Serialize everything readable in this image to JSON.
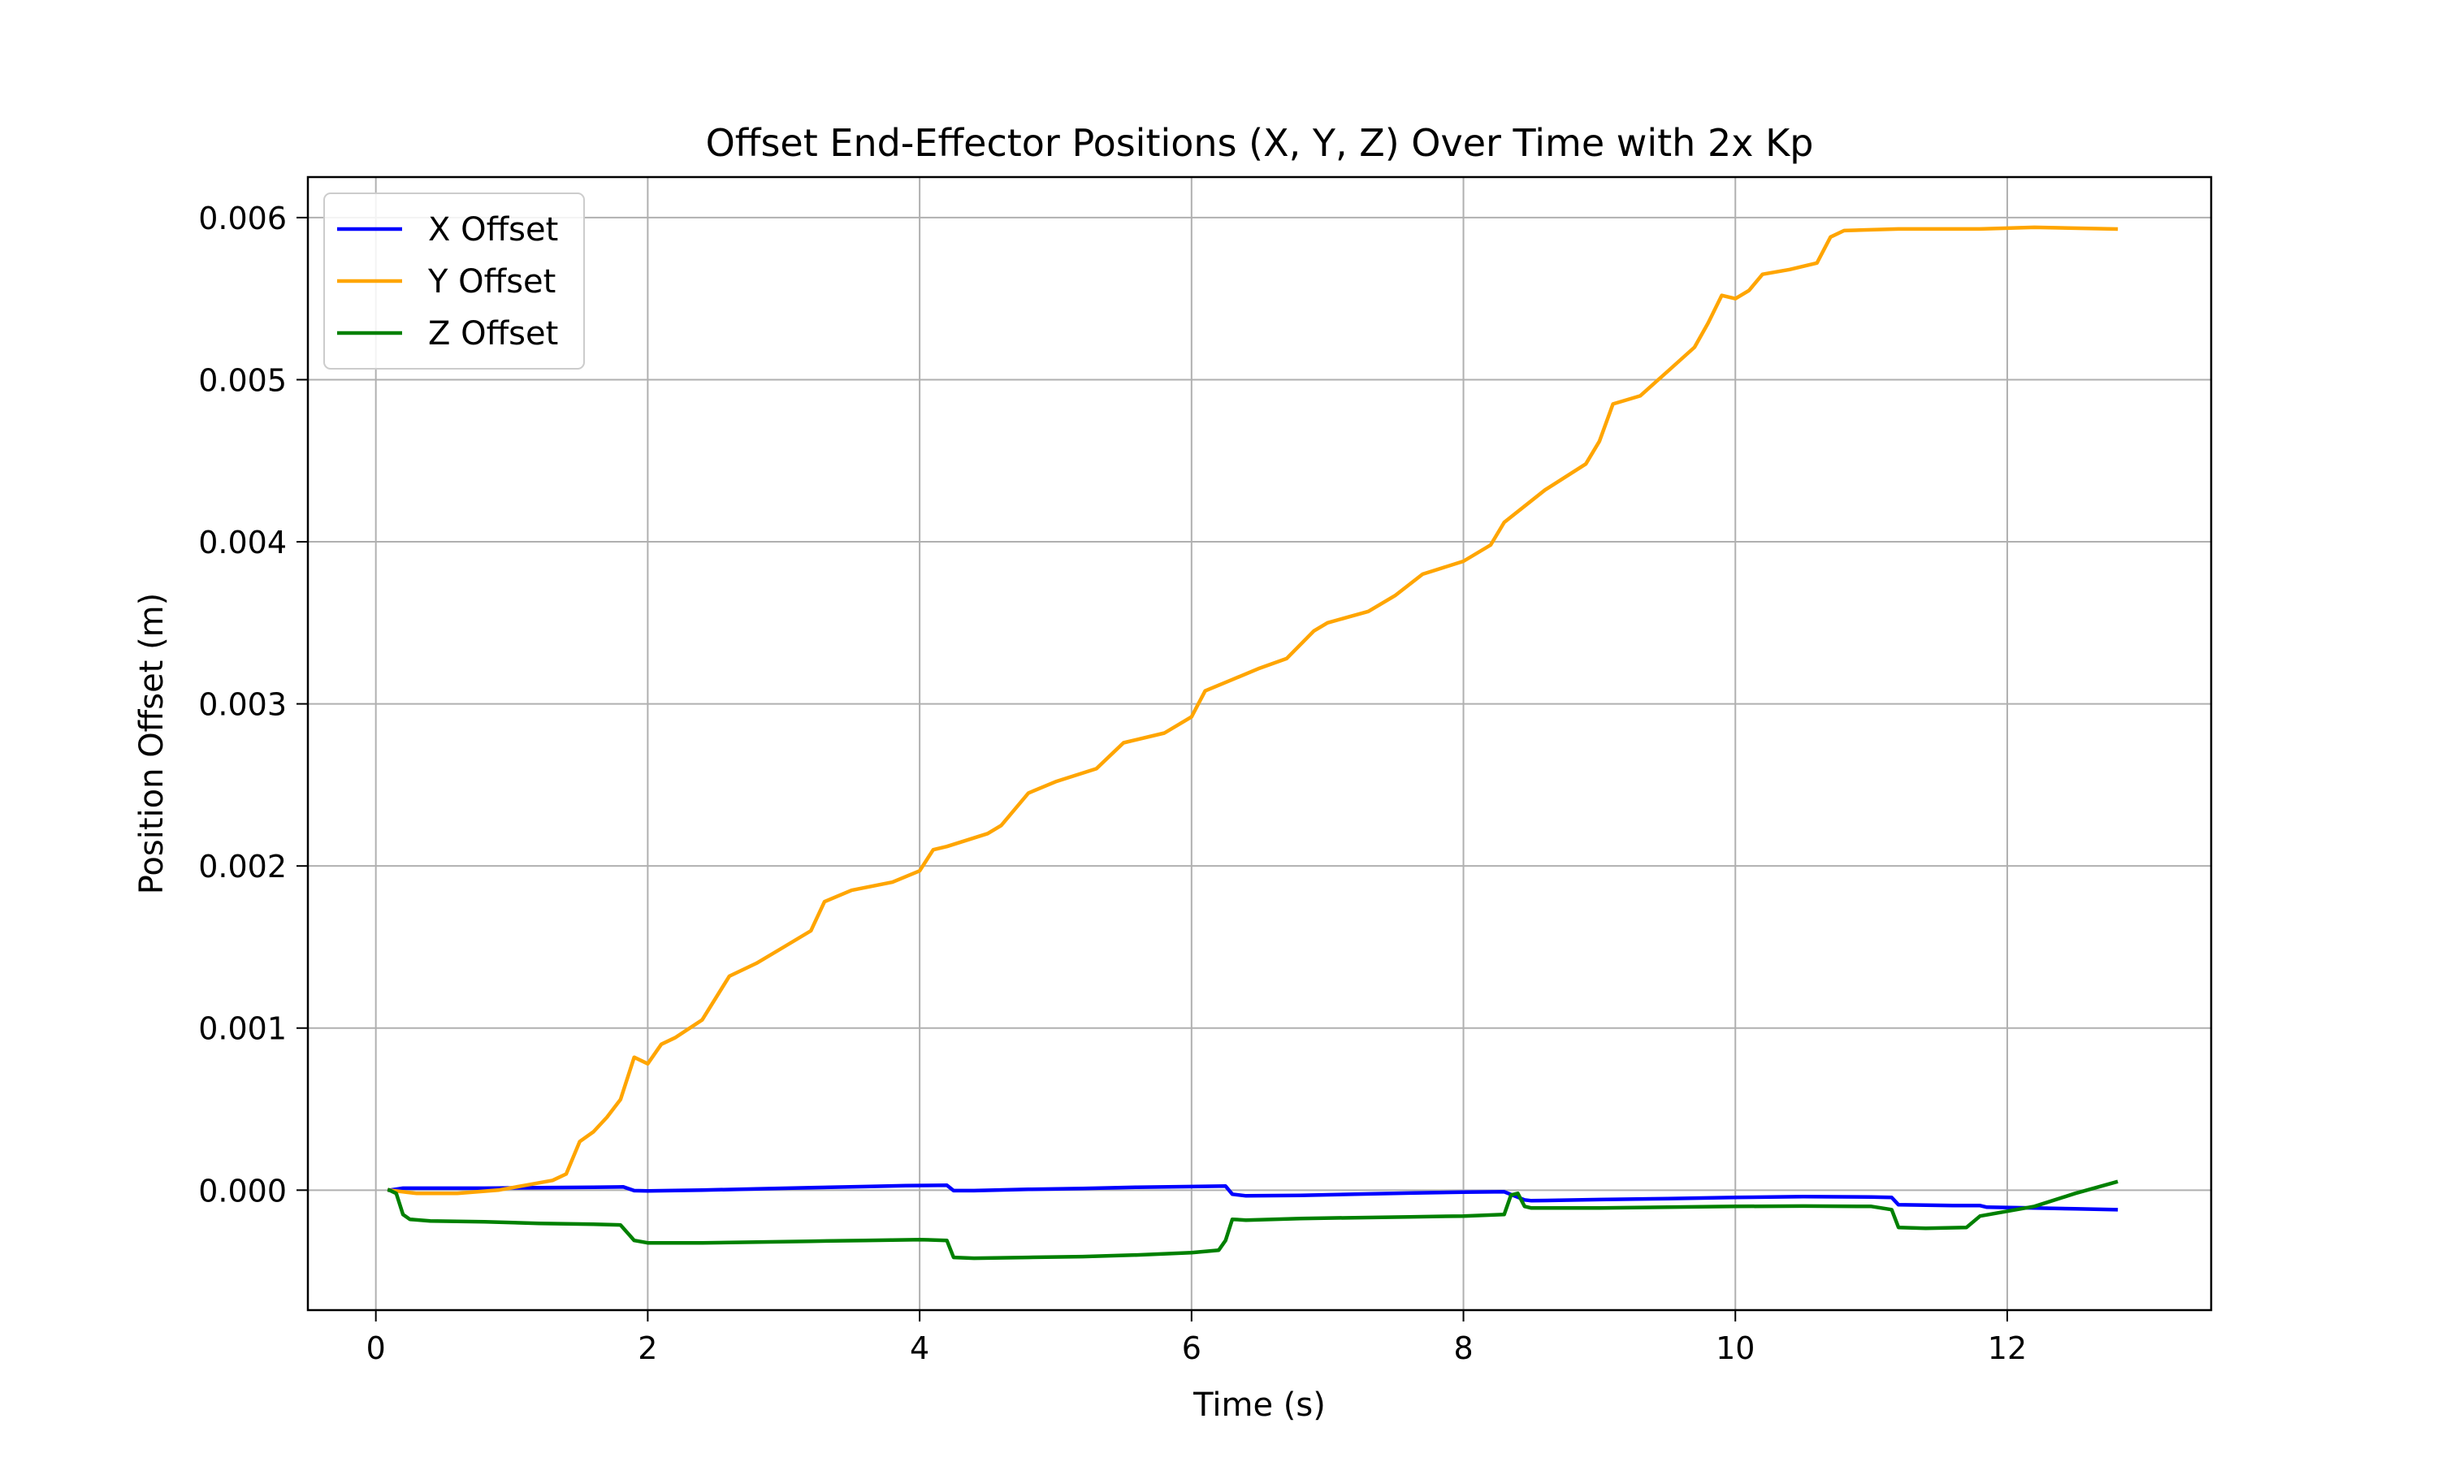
{
  "chart_data": {
    "type": "line",
    "title": "Offset End-Effector Positions (X, Y, Z) Over Time with 2x Kp",
    "xlabel": "Time (s)",
    "ylabel": "Position Offset (m)",
    "xlim": [
      -0.5,
      13.5
    ],
    "ylim": [
      -0.00074,
      0.00625
    ],
    "xticks": [
      0,
      2,
      4,
      6,
      8,
      10,
      12
    ],
    "xtick_labels": [
      "0",
      "2",
      "4",
      "6",
      "8",
      "10",
      "12"
    ],
    "yticks": [
      0.0,
      0.001,
      0.002,
      0.003,
      0.004,
      0.005,
      0.006
    ],
    "ytick_labels": [
      "0.000",
      "0.001",
      "0.002",
      "0.003",
      "0.004",
      "0.005",
      "0.006"
    ],
    "grid": true,
    "legend_position": "top-left",
    "series": [
      {
        "name": "X Offset",
        "color": "#0000ff",
        "x": [
          0.1,
          0.2,
          0.4,
          0.8,
          1.2,
          1.6,
          1.82,
          1.9,
          2.0,
          2.4,
          2.8,
          3.2,
          3.6,
          3.9,
          4.2,
          4.25,
          4.4,
          4.8,
          5.2,
          5.6,
          6.0,
          6.25,
          6.3,
          6.4,
          6.8,
          7.2,
          7.6,
          8.0,
          8.3,
          8.45,
          8.5,
          9.0,
          9.5,
          10.0,
          10.5,
          11.0,
          11.15,
          11.2,
          11.6,
          11.8,
          11.85,
          12.2,
          12.5,
          12.8
        ],
        "y": [
          0.0,
          1.2e-05,
          1.2e-05,
          1.2e-05,
          1.5e-05,
          1.8e-05,
          2e-05,
          -3e-06,
          -5e-06,
          0.0,
          8e-06,
          1.5e-05,
          2.2e-05,
          2.8e-05,
          3e-05,
          -3e-06,
          -3e-06,
          5e-06,
          1e-05,
          1.8e-05,
          2.2e-05,
          2.5e-05,
          -2.5e-05,
          -3.5e-05,
          -3.2e-05,
          -2.5e-05,
          -1.8e-05,
          -1.2e-05,
          -1e-05,
          -6e-05,
          -6.5e-05,
          -5.8e-05,
          -5.2e-05,
          -4.5e-05,
          -4e-05,
          -4.2e-05,
          -4.5e-05,
          -9e-05,
          -9.5e-05,
          -9.5e-05,
          -0.000105,
          -0.00011,
          -0.000115,
          -0.00012
        ]
      },
      {
        "name": "Y Offset",
        "color": "#ffa500",
        "x": [
          0.1,
          0.3,
          0.6,
          0.9,
          1.1,
          1.3,
          1.4,
          1.5,
          1.6,
          1.7,
          1.8,
          1.9,
          2.0,
          2.1,
          2.2,
          2.4,
          2.6,
          2.8,
          3.0,
          3.2,
          3.3,
          3.5,
          3.8,
          4.0,
          4.1,
          4.2,
          4.5,
          4.6,
          4.8,
          5.0,
          5.3,
          5.5,
          5.8,
          6.0,
          6.1,
          6.3,
          6.5,
          6.7,
          6.9,
          7.0,
          7.3,
          7.5,
          7.7,
          8.0,
          8.2,
          8.3,
          8.6,
          8.9,
          9.0,
          9.1,
          9.3,
          9.5,
          9.7,
          9.8,
          9.9,
          10.0,
          10.1,
          10.2,
          10.4,
          10.6,
          10.7,
          10.8,
          11.2,
          11.8,
          12.2,
          12.8
        ],
        "y": [
          0.0,
          -2e-05,
          -2e-05,
          0.0,
          3e-05,
          6e-05,
          0.0001,
          0.0003,
          0.00036,
          0.00045,
          0.00056,
          0.00082,
          0.00078,
          0.0009,
          0.00094,
          0.00105,
          0.00132,
          0.0014,
          0.0015,
          0.0016,
          0.00178,
          0.00185,
          0.0019,
          0.00197,
          0.0021,
          0.00212,
          0.0022,
          0.00225,
          0.00245,
          0.00252,
          0.0026,
          0.00276,
          0.00282,
          0.00292,
          0.00308,
          0.00315,
          0.00322,
          0.00328,
          0.00345,
          0.0035,
          0.00357,
          0.00367,
          0.0038,
          0.00388,
          0.00398,
          0.00412,
          0.00432,
          0.00448,
          0.00462,
          0.00485,
          0.0049,
          0.00505,
          0.0052,
          0.00535,
          0.00552,
          0.0055,
          0.00555,
          0.00565,
          0.00568,
          0.00572,
          0.00588,
          0.00592,
          0.00593,
          0.00593,
          0.00594,
          0.00593
        ]
      },
      {
        "name": "Z Offset",
        "color": "#008000",
        "x": [
          0.1,
          0.15,
          0.2,
          0.25,
          0.4,
          0.8,
          1.2,
          1.6,
          1.8,
          1.9,
          2.0,
          2.4,
          2.8,
          3.2,
          3.6,
          4.0,
          4.2,
          4.25,
          4.4,
          4.8,
          5.2,
          5.6,
          6.0,
          6.2,
          6.25,
          6.3,
          6.4,
          6.8,
          7.2,
          7.6,
          8.0,
          8.3,
          8.35,
          8.4,
          8.45,
          8.5,
          9.0,
          9.5,
          10.0,
          10.5,
          11.0,
          11.15,
          11.2,
          11.4,
          11.7,
          11.8,
          12.2,
          12.5,
          12.8
        ],
        "y": [
          0.0,
          -2e-05,
          -0.00015,
          -0.00018,
          -0.00019,
          -0.000195,
          -0.000205,
          -0.00021,
          -0.000215,
          -0.00031,
          -0.000325,
          -0.000325,
          -0.00032,
          -0.000315,
          -0.00031,
          -0.000305,
          -0.00031,
          -0.000415,
          -0.00042,
          -0.000415,
          -0.00041,
          -0.0004,
          -0.000385,
          -0.00037,
          -0.00031,
          -0.00018,
          -0.000185,
          -0.000175,
          -0.00017,
          -0.000165,
          -0.00016,
          -0.00015,
          -3e-05,
          -2e-05,
          -0.0001,
          -0.00011,
          -0.00011,
          -0.000105,
          -0.0001,
          -9.8e-05,
          -0.0001,
          -0.00012,
          -0.00023,
          -0.000235,
          -0.00023,
          -0.00016,
          -0.0001,
          -2e-05,
          5e-05
        ]
      }
    ]
  }
}
